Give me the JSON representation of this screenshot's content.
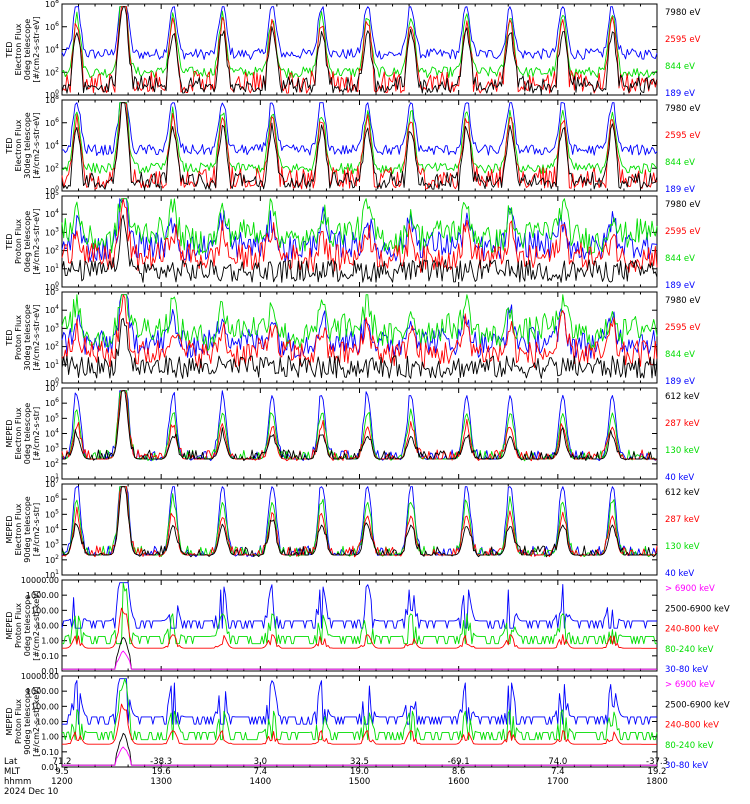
{
  "chart_data": {
    "type": "line",
    "x_ticks": [
      "1200",
      "1300",
      "1400",
      "1500",
      "1600",
      "1700",
      "1800"
    ],
    "footer": {
      "row_labels": [
        "Lat",
        "MLT",
        "hhmm",
        "2024 Dec 10"
      ],
      "lat": [
        "71.2",
        "-38.3",
        "3.0",
        "32.5",
        "-69.1",
        "74.0",
        "-37.3"
      ],
      "mlt": [
        "9.5",
        "19.6",
        "7.4",
        "19.0",
        "8.6",
        "7.4",
        "19.2"
      ]
    },
    "panels": [
      {
        "ylabel": [
          "TED",
          "Electron Flux",
          "0deg telescope",
          "[#/cm2-s-str-eV]"
        ],
        "ymin_exp": 0,
        "ymax_exp": 8,
        "yticks": [
          "10^0",
          "10^2",
          "10^4",
          "10^6",
          "10^8"
        ],
        "legend": [
          {
            "label": "7980 eV",
            "color": "#000000"
          },
          {
            "label": "2595 eV",
            "color": "#ff0000"
          },
          {
            "label": "844 eV",
            "color": "#00dd00"
          },
          {
            "label": "189 eV",
            "color": "#0000ff"
          }
        ]
      },
      {
        "ylabel": [
          "TED",
          "Electron Flux",
          "30deg telescope",
          "[#/cm2-s-str-eV]"
        ],
        "ymin_exp": 0,
        "ymax_exp": 8,
        "yticks": [
          "10^0",
          "10^2",
          "10^4",
          "10^6",
          "10^8"
        ],
        "legend": [
          {
            "label": "7980 eV",
            "color": "#000000"
          },
          {
            "label": "2595 eV",
            "color": "#ff0000"
          },
          {
            "label": "844 eV",
            "color": "#00dd00"
          },
          {
            "label": "189 eV",
            "color": "#0000ff"
          }
        ]
      },
      {
        "ylabel": [
          "TED",
          "Proton Flux",
          "0deg telescope",
          "[#/cm2-s-str-eV]"
        ],
        "ymin_exp": 0,
        "ymax_exp": 5,
        "yticks": [
          "10^0",
          "10^1",
          "10^2",
          "10^3",
          "10^4",
          "10^5"
        ],
        "legend": [
          {
            "label": "7980 eV",
            "color": "#000000"
          },
          {
            "label": "2595 eV",
            "color": "#ff0000"
          },
          {
            "label": "844 eV",
            "color": "#00dd00"
          },
          {
            "label": "189 eV",
            "color": "#0000ff"
          }
        ]
      },
      {
        "ylabel": [
          "TED",
          "Proton Flux",
          "30deg telescope",
          "[#/cm2-s-str-eV]"
        ],
        "ymin_exp": 0,
        "ymax_exp": 5,
        "yticks": [
          "10^0",
          "10^1",
          "10^2",
          "10^3",
          "10^4",
          "10^5"
        ],
        "legend": [
          {
            "label": "7980 eV",
            "color": "#000000"
          },
          {
            "label": "2595 eV",
            "color": "#ff0000"
          },
          {
            "label": "844 eV",
            "color": "#00dd00"
          },
          {
            "label": "189 eV",
            "color": "#0000ff"
          }
        ]
      },
      {
        "ylabel": [
          "MEPED",
          "Electron Flux",
          "0deg telescope",
          "[#/cm2-s-str]"
        ],
        "ymin_exp": 1,
        "ymax_exp": 7,
        "yticks": [
          "10^1",
          "10^2",
          "10^3",
          "10^4",
          "10^5",
          "10^6",
          "10^7"
        ],
        "legend": [
          {
            "label": "612 keV",
            "color": "#000000"
          },
          {
            "label": "287 keV",
            "color": "#ff0000"
          },
          {
            "label": "130 keV",
            "color": "#00dd00"
          },
          {
            "label": "40 keV",
            "color": "#0000ff"
          }
        ]
      },
      {
        "ylabel": [
          "MEPED",
          "Electron Flux",
          "90deg telescope",
          "[#/cm2-s-str]"
        ],
        "ymin_exp": 1,
        "ymax_exp": 7,
        "yticks": [
          "10^1",
          "10^2",
          "10^3",
          "10^4",
          "10^5",
          "10^6",
          "10^7"
        ],
        "legend": [
          {
            "label": "612 keV",
            "color": "#000000"
          },
          {
            "label": "287 keV",
            "color": "#ff0000"
          },
          {
            "label": "130 keV",
            "color": "#00dd00"
          },
          {
            "label": "40 keV",
            "color": "#0000ff"
          }
        ]
      },
      {
        "ylabel": [
          "MEPED",
          "Proton Flux",
          "0deg telescope",
          "[#/cm2-s-str-keV]"
        ],
        "ymin_exp": -2,
        "ymax_exp": 4,
        "yticks": [
          "0.01",
          "0.10",
          "1.00",
          "10.00",
          "100.00",
          "1000.00",
          "10000.00"
        ],
        "legend": [
          {
            "label": "> 6900 keV",
            "color": "#ff00ff"
          },
          {
            "label": "2500-6900 keV",
            "color": "#000000"
          },
          {
            "label": "240-800 keV",
            "color": "#ff0000"
          },
          {
            "label": "80-240 keV",
            "color": "#00dd00"
          },
          {
            "label": "30-80 keV",
            "color": "#0000ff"
          }
        ]
      },
      {
        "ylabel": [
          "MEPED",
          "Proton Flux",
          "90deg telescope",
          "[#/cm2-s-str-keV]"
        ],
        "ymin_exp": -2,
        "ymax_exp": 4,
        "yticks": [
          "0.01",
          "0.10",
          "1.00",
          "10.00",
          "100.00",
          "1000.00",
          "10000.00"
        ],
        "legend": [
          {
            "label": "> 6900 keV",
            "color": "#ff00ff"
          },
          {
            "label": "2500-6900 keV",
            "color": "#000000"
          },
          {
            "label": "240-800 keV",
            "color": "#ff0000"
          },
          {
            "label": "80-240 keV",
            "color": "#00dd00"
          },
          {
            "label": "30-80 keV",
            "color": "#0000ff"
          }
        ]
      }
    ]
  }
}
